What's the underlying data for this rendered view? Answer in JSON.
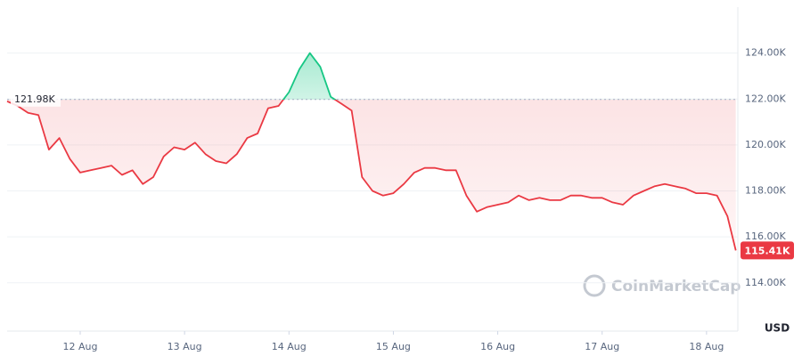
{
  "chart_data": {
    "type": "line",
    "x": [
      11.3,
      11.4,
      11.5,
      11.6,
      11.7,
      11.8,
      11.9,
      12.0,
      12.1,
      12.2,
      12.3,
      12.4,
      12.5,
      12.6,
      12.7,
      12.8,
      12.9,
      13.0,
      13.1,
      13.2,
      13.3,
      13.4,
      13.5,
      13.6,
      13.7,
      13.8,
      13.9,
      14.0,
      14.1,
      14.2,
      14.3,
      14.4,
      14.5,
      14.6,
      14.7,
      14.8,
      14.9,
      15.0,
      15.1,
      15.2,
      15.3,
      15.4,
      15.5,
      15.6,
      15.7,
      15.8,
      15.9,
      16.0,
      16.1,
      16.2,
      16.3,
      16.4,
      16.5,
      16.6,
      16.7,
      16.8,
      16.9,
      17.0,
      17.1,
      17.2,
      17.3,
      17.4,
      17.5,
      17.6,
      17.7,
      17.8,
      17.9,
      18.0,
      18.1,
      18.2,
      18.28
    ],
    "values": [
      121900,
      121700,
      121400,
      121300,
      119800,
      120300,
      119400,
      118800,
      118900,
      119000,
      119100,
      118700,
      118900,
      118300,
      118600,
      119500,
      119900,
      119800,
      120100,
      119600,
      119300,
      119200,
      119600,
      120300,
      120500,
      121600,
      121700,
      122300,
      123300,
      124000,
      123400,
      122100,
      121800,
      121500,
      118600,
      118000,
      117800,
      117900,
      118300,
      118800,
      119000,
      119000,
      118900,
      118900,
      117800,
      117100,
      117300,
      117400,
      117500,
      117800,
      117600,
      117700,
      117600,
      117600,
      117800,
      117800,
      117700,
      117700,
      117500,
      117400,
      117800,
      118000,
      118200,
      118300,
      118200,
      118100,
      117900,
      117900,
      117800,
      116900,
      115410
    ],
    "up_color": "#16c784",
    "down_color": "#ea3943",
    "baseline": {
      "value": 121980,
      "label": "121.98K"
    },
    "current": {
      "value": 115410,
      "label": "115.41K"
    },
    "xlim": [
      11.3,
      18.3
    ],
    "xticks": [
      {
        "value": 12,
        "label": "12 Aug"
      },
      {
        "value": 13,
        "label": "13 Aug"
      },
      {
        "value": 14,
        "label": "14 Aug"
      },
      {
        "value": 15,
        "label": "15 Aug"
      },
      {
        "value": 16,
        "label": "16 Aug"
      },
      {
        "value": 17,
        "label": "17 Aug"
      },
      {
        "value": 18,
        "label": "18 Aug"
      }
    ],
    "ylim": [
      111900,
      126000
    ],
    "yticks": [
      {
        "value": 114000,
        "label": "114.00K"
      },
      {
        "value": 116000,
        "label": "116.00K"
      },
      {
        "value": 118000,
        "label": "118.00K"
      },
      {
        "value": 120000,
        "label": "120.00K"
      },
      {
        "value": 122000,
        "label": "122.00K"
      },
      {
        "value": 124000,
        "label": "124.00K"
      }
    ],
    "grid": true,
    "currency": "USD",
    "watermark": "CoinMarketCap"
  }
}
